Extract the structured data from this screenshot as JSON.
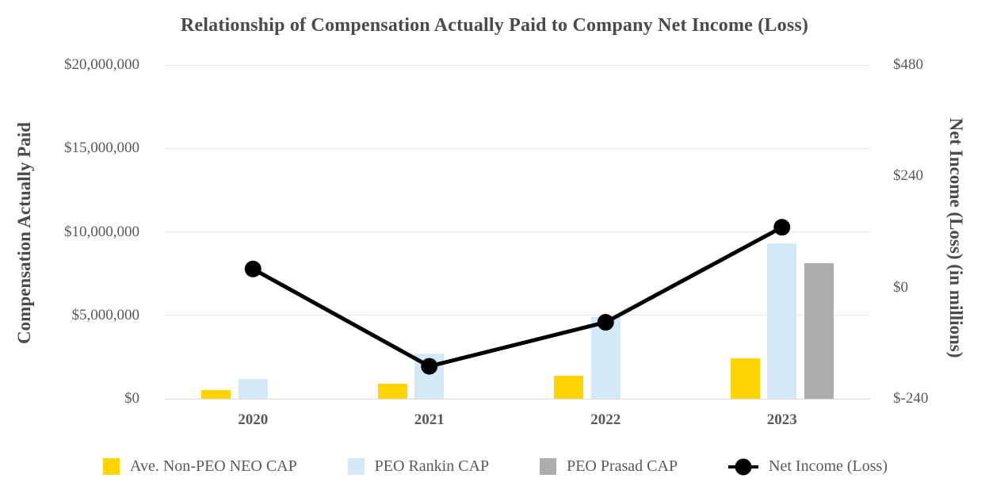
{
  "chart_data": {
    "type": "bar+line",
    "title": "Relationship of Compensation Actually Paid to Company Net Income (Loss)",
    "categories": [
      "2020",
      "2021",
      "2022",
      "2023"
    ],
    "series": [
      {
        "name": "Ave. Non-PEO NEO CAP",
        "type": "bar",
        "axis": "left",
        "color": "#FFD400",
        "values": [
          500000,
          900000,
          1400000,
          2400000
        ]
      },
      {
        "name": "PEO Rankin CAP",
        "type": "bar",
        "axis": "left",
        "color": "#D3E9F8",
        "values": [
          1200000,
          2700000,
          4900000,
          9300000
        ]
      },
      {
        "name": "PEO Prasad CAP",
        "type": "bar",
        "axis": "left",
        "color": "#ADADAD",
        "values": [
          null,
          null,
          null,
          8100000
        ]
      },
      {
        "name": "Net Income (Loss)",
        "type": "line",
        "axis": "right",
        "color": "#000000",
        "unit": "USD millions",
        "values": [
          40,
          -170,
          -75,
          130
        ]
      }
    ],
    "left_axis": {
      "label": "Compensation Actually Paid",
      "range": [
        0,
        20000000
      ],
      "ticks": [
        0,
        5000000,
        10000000,
        15000000,
        20000000
      ],
      "tick_labels": [
        "$0",
        "$5,000,000",
        "$10,000,000",
        "$15,000,000",
        "$20,000,000"
      ],
      "grid": true
    },
    "right_axis": {
      "label": "Net Income (Loss) (in millions)",
      "range": [
        -240,
        480
      ],
      "ticks": [
        -240,
        0,
        240,
        480
      ],
      "tick_labels": [
        "$-240",
        "$0",
        "$240",
        "$480"
      ],
      "grid": false
    },
    "legend_position": "bottom"
  },
  "legend": [
    {
      "label": "Ave. Non-PEO NEO CAP",
      "swatch": "square",
      "color": "#FFD400"
    },
    {
      "label": "PEO Rankin CAP",
      "swatch": "square",
      "color": "#D3E9F8"
    },
    {
      "label": "PEO Prasad CAP",
      "swatch": "square",
      "color": "#ADADAD"
    },
    {
      "label": "Net Income (Loss)",
      "swatch": "line-marker",
      "color": "#000000"
    }
  ]
}
